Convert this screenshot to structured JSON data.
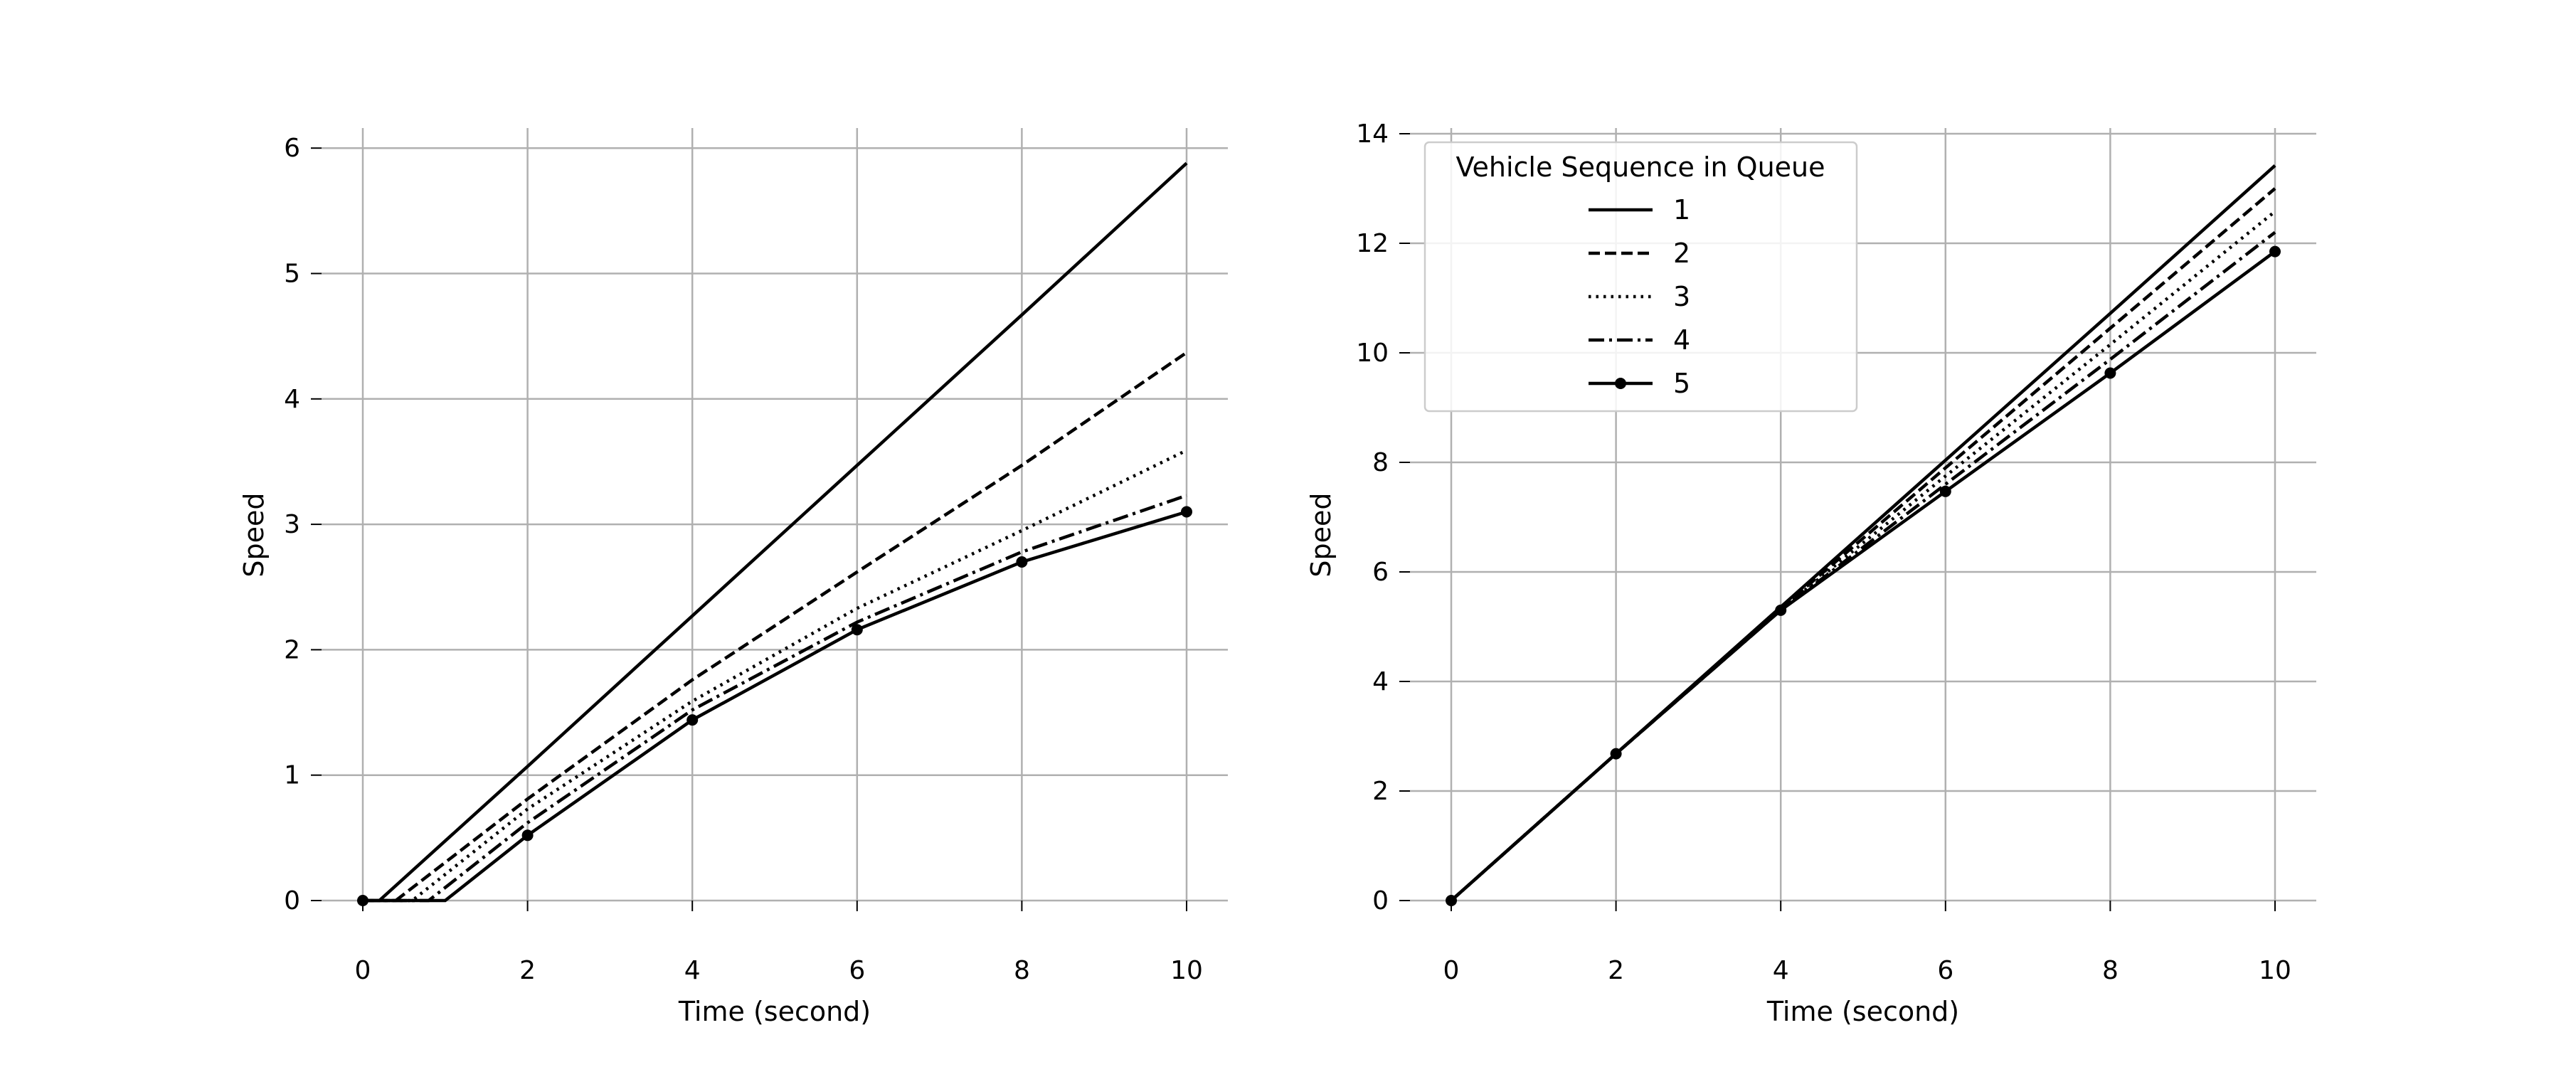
{
  "chart_data": [
    {
      "type": "line",
      "xlabel": "Time (second)",
      "ylabel": "Speed",
      "xlim": [
        -0.5,
        10.5
      ],
      "ylim": [
        -0.3,
        6.15
      ],
      "xticks": [
        0,
        2,
        4,
        6,
        8,
        10
      ],
      "yticks": [
        0,
        1,
        2,
        3,
        4,
        5,
        6
      ],
      "grid": true,
      "series": [
        {
          "name": "1",
          "style": "solid",
          "x": [
            0,
            0.2,
            2,
            4,
            6,
            8,
            10
          ],
          "y": [
            0,
            0,
            1.07,
            2.27,
            3.47,
            4.67,
            5.88
          ]
        },
        {
          "name": "2",
          "style": "dashed",
          "x": [
            0,
            0.4,
            2,
            4,
            6,
            8,
            10
          ],
          "y": [
            0,
            0,
            0.81,
            1.76,
            2.62,
            3.47,
            4.37
          ]
        },
        {
          "name": "3",
          "style": "dotted",
          "x": [
            0,
            0.6,
            2,
            4,
            6,
            8,
            10
          ],
          "y": [
            0,
            0,
            0.73,
            1.59,
            2.33,
            2.95,
            3.59
          ]
        },
        {
          "name": "4",
          "style": "dashdot",
          "x": [
            0,
            0.8,
            2,
            4,
            6,
            8,
            10
          ],
          "y": [
            0,
            0,
            0.62,
            1.52,
            2.22,
            2.78,
            3.23
          ]
        },
        {
          "name": "5",
          "style": "solid-marker",
          "x": [
            0,
            1,
            2,
            4,
            6,
            8,
            10
          ],
          "y": [
            0,
            0,
            0.52,
            1.44,
            2.16,
            2.7,
            3.1
          ],
          "marker_x": [
            0,
            2,
            4,
            6,
            8,
            10
          ],
          "marker_y": [
            0,
            0.52,
            1.44,
            2.16,
            2.7,
            3.1
          ]
        }
      ]
    },
    {
      "type": "line",
      "xlabel": "Time (second)",
      "ylabel": "Speed",
      "xlim": [
        -0.5,
        10.5
      ],
      "ylim": [
        -0.65,
        14.3
      ],
      "xticks": [
        0,
        2,
        4,
        6,
        8,
        10
      ],
      "yticks": [
        0,
        2,
        4,
        6,
        8,
        10,
        12,
        14
      ],
      "grid": true,
      "legend": {
        "title": "Vehicle Sequence in Queue",
        "placement": "upper-left",
        "entries": [
          "1",
          "2",
          "3",
          "4",
          "5"
        ]
      },
      "series": [
        {
          "name": "1",
          "style": "solid",
          "x": [
            0,
            2,
            4,
            6,
            8,
            10
          ],
          "y": [
            0,
            2.68,
            5.36,
            8.04,
            10.72,
            13.42
          ]
        },
        {
          "name": "2",
          "style": "dashed",
          "x": [
            0,
            2,
            4,
            6,
            8,
            10
          ],
          "y": [
            0,
            2.68,
            5.33,
            7.9,
            10.45,
            13.0
          ]
        },
        {
          "name": "3",
          "style": "dotted",
          "x": [
            0,
            2,
            4,
            6,
            8,
            10
          ],
          "y": [
            0,
            2.68,
            5.31,
            7.75,
            10.15,
            12.58
          ]
        },
        {
          "name": "4",
          "style": "dashdot",
          "x": [
            0,
            2,
            4,
            6,
            8,
            10
          ],
          "y": [
            0,
            2.68,
            5.3,
            7.6,
            9.88,
            12.2
          ]
        },
        {
          "name": "5",
          "style": "solid-marker",
          "x": [
            0,
            2,
            4,
            6,
            8,
            10
          ],
          "y": [
            0,
            2.68,
            5.3,
            7.47,
            9.63,
            11.85
          ],
          "marker_x": [
            0,
            2,
            4,
            6,
            8,
            10
          ],
          "marker_y": [
            0,
            2.68,
            5.3,
            7.47,
            9.63,
            11.85
          ]
        }
      ]
    }
  ]
}
